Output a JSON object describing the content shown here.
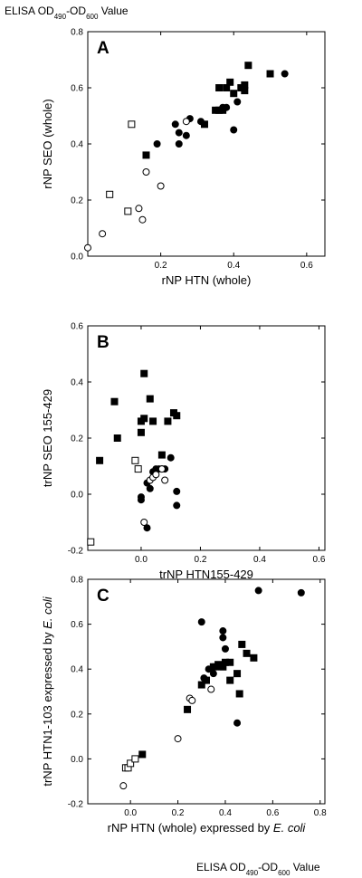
{
  "header": {
    "pre": "ELISA OD",
    "sub1": "490",
    "mid": "-OD",
    "sub2": "600",
    "post": " Value"
  },
  "footer": {
    "pre": "ELISA OD",
    "sub1": "490",
    "mid": "-OD",
    "sub2": "600",
    "post": " Value"
  },
  "chart_data": [
    {
      "type": "scatter",
      "panel": "A",
      "xlabel": "rNP HTN (whole)",
      "ylabel": "rNP SEO (whole)",
      "xlim": [
        0,
        0.65
      ],
      "ylim": [
        0,
        0.8
      ],
      "xticks": [
        0.2,
        0.4,
        0.6
      ],
      "xtick_labels": [
        "0.2",
        "0.4",
        "0.6"
      ],
      "yticks": [
        0.0,
        0.2,
        0.4,
        0.6,
        0.8
      ],
      "ytick_labels": [
        "0.0",
        "0.2",
        "0.4",
        "0.6",
        "0.8"
      ],
      "series": [
        {
          "marker": "filled-square",
          "points": [
            [
              0.16,
              0.36
            ],
            [
              0.32,
              0.47
            ],
            [
              0.35,
              0.52
            ],
            [
              0.36,
              0.52
            ],
            [
              0.36,
              0.6
            ],
            [
              0.37,
              0.52
            ],
            [
              0.38,
              0.6
            ],
            [
              0.39,
              0.62
            ],
            [
              0.4,
              0.58
            ],
            [
              0.42,
              0.6
            ],
            [
              0.43,
              0.61
            ],
            [
              0.43,
              0.59
            ],
            [
              0.44,
              0.68
            ],
            [
              0.5,
              0.65
            ]
          ]
        },
        {
          "marker": "filled-circle",
          "points": [
            [
              0.19,
              0.4
            ],
            [
              0.24,
              0.47
            ],
            [
              0.25,
              0.4
            ],
            [
              0.25,
              0.44
            ],
            [
              0.27,
              0.43
            ],
            [
              0.28,
              0.49
            ],
            [
              0.31,
              0.48
            ],
            [
              0.37,
              0.53
            ],
            [
              0.38,
              0.53
            ],
            [
              0.4,
              0.45
            ],
            [
              0.41,
              0.55
            ],
            [
              0.54,
              0.65
            ]
          ]
        },
        {
          "marker": "open-square",
          "points": [
            [
              0.06,
              0.22
            ],
            [
              0.11,
              0.16
            ],
            [
              0.12,
              0.47
            ]
          ]
        },
        {
          "marker": "open-circle",
          "points": [
            [
              0.0,
              0.03
            ],
            [
              0.04,
              0.08
            ],
            [
              0.14,
              0.17
            ],
            [
              0.15,
              0.13
            ],
            [
              0.16,
              0.3
            ],
            [
              0.2,
              0.25
            ],
            [
              0.27,
              0.48
            ]
          ]
        }
      ]
    },
    {
      "type": "scatter",
      "panel": "B",
      "xlabel": "trNP HTN155-429",
      "ylabel": "trNP SEO 155-429",
      "xlim": [
        -0.18,
        0.62
      ],
      "ylim": [
        -0.2,
        0.6
      ],
      "xticks": [
        0.0,
        0.2,
        0.4,
        0.6
      ],
      "xtick_labels": [
        "0.0",
        "0.2",
        "0.4",
        "0.6"
      ],
      "yticks": [
        -0.2,
        0.0,
        0.2,
        0.4,
        0.6
      ],
      "ytick_labels": [
        "-0.2",
        "0.0",
        "0.2",
        "0.4",
        "0.6"
      ],
      "series": [
        {
          "marker": "filled-square",
          "points": [
            [
              -0.14,
              0.12
            ],
            [
              -0.09,
              0.33
            ],
            [
              -0.08,
              0.2
            ],
            [
              0.0,
              0.26
            ],
            [
              0.0,
              0.22
            ],
            [
              0.01,
              0.27
            ],
            [
              0.01,
              0.43
            ],
            [
              0.03,
              0.34
            ],
            [
              0.04,
              0.26
            ],
            [
              0.07,
              0.14
            ],
            [
              0.09,
              0.26
            ],
            [
              0.11,
              0.29
            ],
            [
              0.12,
              0.28
            ]
          ]
        },
        {
          "marker": "filled-circle",
          "points": [
            [
              0.0,
              -0.01
            ],
            [
              0.0,
              -0.02
            ],
            [
              0.02,
              0.04
            ],
            [
              0.02,
              -0.12
            ],
            [
              0.03,
              0.02
            ],
            [
              0.04,
              0.08
            ],
            [
              0.05,
              0.09
            ],
            [
              0.06,
              0.09
            ],
            [
              0.07,
              0.09
            ],
            [
              0.08,
              0.09
            ],
            [
              0.1,
              0.13
            ],
            [
              0.12,
              0.01
            ],
            [
              0.12,
              -0.04
            ]
          ]
        },
        {
          "marker": "open-square",
          "points": [
            [
              -0.17,
              -0.17
            ],
            [
              -0.02,
              0.12
            ],
            [
              -0.01,
              0.09
            ]
          ]
        },
        {
          "marker": "open-circle",
          "points": [
            [
              0.01,
              -0.1
            ],
            [
              0.03,
              0.05
            ],
            [
              0.04,
              0.06
            ],
            [
              0.05,
              0.07
            ],
            [
              0.07,
              0.09
            ],
            [
              0.08,
              0.05
            ]
          ]
        }
      ]
    },
    {
      "type": "scatter",
      "panel": "C",
      "xlabel": "rNP HTN (whole)  expressed by E. coli",
      "ylabel": "trNP HTN1-103 expressed by E. coli",
      "xlim": [
        -0.18,
        0.82
      ],
      "ylim": [
        -0.2,
        0.8
      ],
      "xticks": [
        0.0,
        0.2,
        0.4,
        0.6,
        0.8
      ],
      "xtick_labels": [
        "0.0",
        "0.2",
        "0.4",
        "0.6",
        "0.8"
      ],
      "yticks": [
        -0.2,
        0.0,
        0.2,
        0.4,
        0.6,
        0.8
      ],
      "ytick_labels": [
        "-0.2",
        "0.0",
        "0.2",
        "0.4",
        "0.6",
        "0.8"
      ],
      "series": [
        {
          "marker": "filled-square",
          "points": [
            [
              0.05,
              0.02
            ],
            [
              0.24,
              0.22
            ],
            [
              0.3,
              0.33
            ],
            [
              0.32,
              0.35
            ],
            [
              0.35,
              0.41
            ],
            [
              0.37,
              0.42
            ],
            [
              0.39,
              0.41
            ],
            [
              0.4,
              0.43
            ],
            [
              0.42,
              0.43
            ],
            [
              0.42,
              0.35
            ],
            [
              0.45,
              0.38
            ],
            [
              0.46,
              0.29
            ],
            [
              0.47,
              0.51
            ],
            [
              0.49,
              0.47
            ],
            [
              0.52,
              0.45
            ]
          ]
        },
        {
          "marker": "filled-circle",
          "points": [
            [
              0.3,
              0.61
            ],
            [
              0.31,
              0.36
            ],
            [
              0.33,
              0.4
            ],
            [
              0.35,
              0.41
            ],
            [
              0.35,
              0.38
            ],
            [
              0.37,
              0.41
            ],
            [
              0.39,
              0.57
            ],
            [
              0.39,
              0.54
            ],
            [
              0.4,
              0.49
            ],
            [
              0.45,
              0.16
            ],
            [
              0.54,
              0.75
            ],
            [
              0.72,
              0.74
            ]
          ]
        },
        {
          "marker": "open-square",
          "points": [
            [
              -0.02,
              -0.04
            ],
            [
              -0.01,
              -0.04
            ],
            [
              0.0,
              -0.02
            ],
            [
              0.02,
              0.0
            ]
          ]
        },
        {
          "marker": "open-circle",
          "points": [
            [
              -0.03,
              -0.12
            ],
            [
              0.2,
              0.09
            ],
            [
              0.25,
              0.27
            ],
            [
              0.26,
              0.26
            ],
            [
              0.34,
              0.31
            ]
          ]
        }
      ]
    }
  ]
}
